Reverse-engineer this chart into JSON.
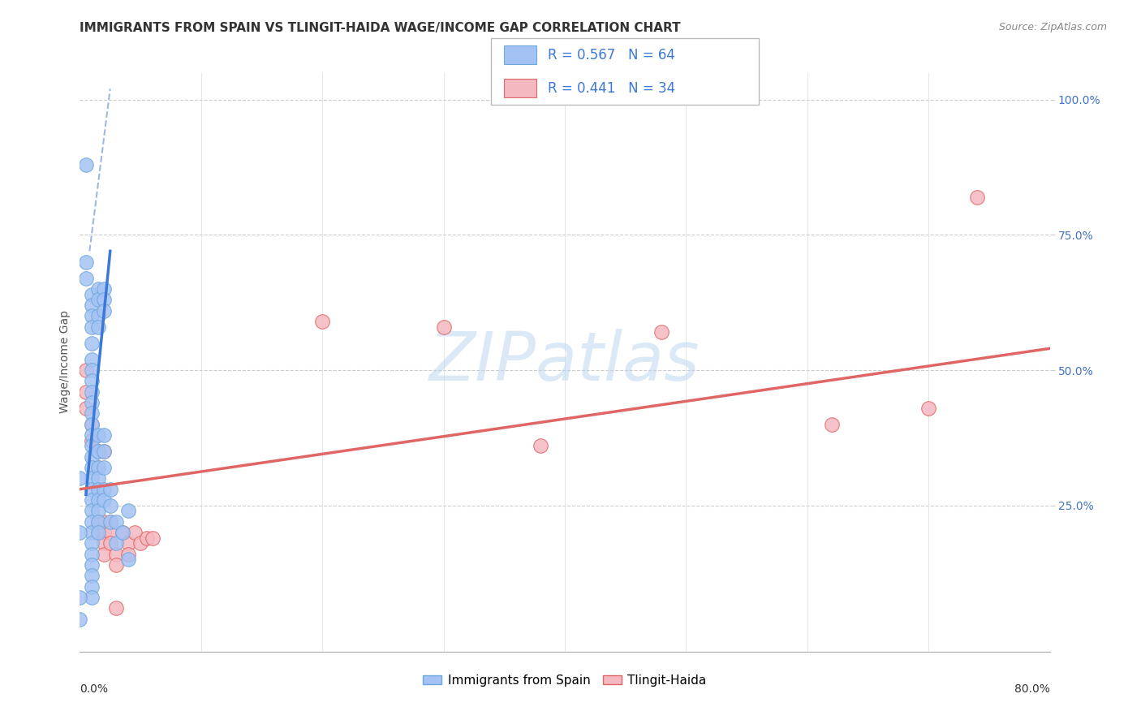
{
  "title": "IMMIGRANTS FROM SPAIN VS TLINGIT-HAIDA WAGE/INCOME GAP CORRELATION CHART",
  "source": "Source: ZipAtlas.com",
  "ylabel": "Wage/Income Gap",
  "xlim": [
    0.0,
    0.8
  ],
  "ylim": [
    -0.02,
    1.05
  ],
  "legend1_r": "0.567",
  "legend1_n": "64",
  "legend2_r": "0.441",
  "legend2_n": "34",
  "watermark": "ZIPatlas",
  "blue_color": "#a4c2f4",
  "pink_color": "#f4b8c1",
  "blue_line_color": "#3c78d8",
  "pink_line_color": "#e06666",
  "blue_scatter": [
    [
      0.005,
      0.88
    ],
    [
      0.005,
      0.7
    ],
    [
      0.005,
      0.67
    ],
    [
      0.01,
      0.64
    ],
    [
      0.01,
      0.62
    ],
    [
      0.01,
      0.6
    ],
    [
      0.01,
      0.58
    ],
    [
      0.01,
      0.55
    ],
    [
      0.01,
      0.52
    ],
    [
      0.01,
      0.5
    ],
    [
      0.01,
      0.48
    ],
    [
      0.01,
      0.46
    ],
    [
      0.01,
      0.44
    ],
    [
      0.01,
      0.42
    ],
    [
      0.01,
      0.4
    ],
    [
      0.01,
      0.38
    ],
    [
      0.01,
      0.36
    ],
    [
      0.01,
      0.34
    ],
    [
      0.01,
      0.32
    ],
    [
      0.01,
      0.3
    ],
    [
      0.01,
      0.28
    ],
    [
      0.01,
      0.26
    ],
    [
      0.01,
      0.24
    ],
    [
      0.01,
      0.22
    ],
    [
      0.01,
      0.2
    ],
    [
      0.01,
      0.18
    ],
    [
      0.01,
      0.16
    ],
    [
      0.01,
      0.14
    ],
    [
      0.01,
      0.12
    ],
    [
      0.01,
      0.1
    ],
    [
      0.01,
      0.08
    ],
    [
      0.015,
      0.65
    ],
    [
      0.015,
      0.63
    ],
    [
      0.015,
      0.6
    ],
    [
      0.015,
      0.58
    ],
    [
      0.015,
      0.38
    ],
    [
      0.015,
      0.35
    ],
    [
      0.015,
      0.32
    ],
    [
      0.015,
      0.3
    ],
    [
      0.015,
      0.28
    ],
    [
      0.015,
      0.26
    ],
    [
      0.015,
      0.24
    ],
    [
      0.015,
      0.22
    ],
    [
      0.015,
      0.2
    ],
    [
      0.02,
      0.65
    ],
    [
      0.02,
      0.63
    ],
    [
      0.02,
      0.61
    ],
    [
      0.02,
      0.38
    ],
    [
      0.02,
      0.35
    ],
    [
      0.02,
      0.32
    ],
    [
      0.02,
      0.28
    ],
    [
      0.02,
      0.26
    ],
    [
      0.025,
      0.28
    ],
    [
      0.025,
      0.25
    ],
    [
      0.025,
      0.22
    ],
    [
      0.03,
      0.22
    ],
    [
      0.03,
      0.18
    ],
    [
      0.035,
      0.2
    ],
    [
      0.04,
      0.24
    ],
    [
      0.04,
      0.15
    ],
    [
      0.0,
      0.3
    ],
    [
      0.0,
      0.2
    ],
    [
      0.0,
      0.08
    ],
    [
      0.0,
      0.04
    ]
  ],
  "pink_scatter": [
    [
      0.005,
      0.5
    ],
    [
      0.005,
      0.46
    ],
    [
      0.005,
      0.43
    ],
    [
      0.01,
      0.4
    ],
    [
      0.01,
      0.37
    ],
    [
      0.015,
      0.35
    ],
    [
      0.015,
      0.32
    ],
    [
      0.015,
      0.22
    ],
    [
      0.015,
      0.2
    ],
    [
      0.02,
      0.35
    ],
    [
      0.02,
      0.22
    ],
    [
      0.02,
      0.2
    ],
    [
      0.02,
      0.18
    ],
    [
      0.02,
      0.16
    ],
    [
      0.025,
      0.22
    ],
    [
      0.025,
      0.2
    ],
    [
      0.025,
      0.18
    ],
    [
      0.03,
      0.16
    ],
    [
      0.03,
      0.14
    ],
    [
      0.03,
      0.06
    ],
    [
      0.035,
      0.2
    ],
    [
      0.04,
      0.18
    ],
    [
      0.04,
      0.16
    ],
    [
      0.045,
      0.2
    ],
    [
      0.05,
      0.18
    ],
    [
      0.055,
      0.19
    ],
    [
      0.06,
      0.19
    ],
    [
      0.2,
      0.59
    ],
    [
      0.3,
      0.58
    ],
    [
      0.38,
      0.36
    ],
    [
      0.48,
      0.57
    ],
    [
      0.62,
      0.4
    ],
    [
      0.7,
      0.43
    ],
    [
      0.74,
      0.82
    ]
  ],
  "blue_regline_solid": [
    [
      0.005,
      0.27
    ],
    [
      0.025,
      0.72
    ]
  ],
  "blue_regline_dashed": [
    [
      0.008,
      0.72
    ],
    [
      0.025,
      1.02
    ]
  ],
  "pink_regline": [
    [
      0.0,
      0.28
    ],
    [
      0.8,
      0.54
    ]
  ]
}
